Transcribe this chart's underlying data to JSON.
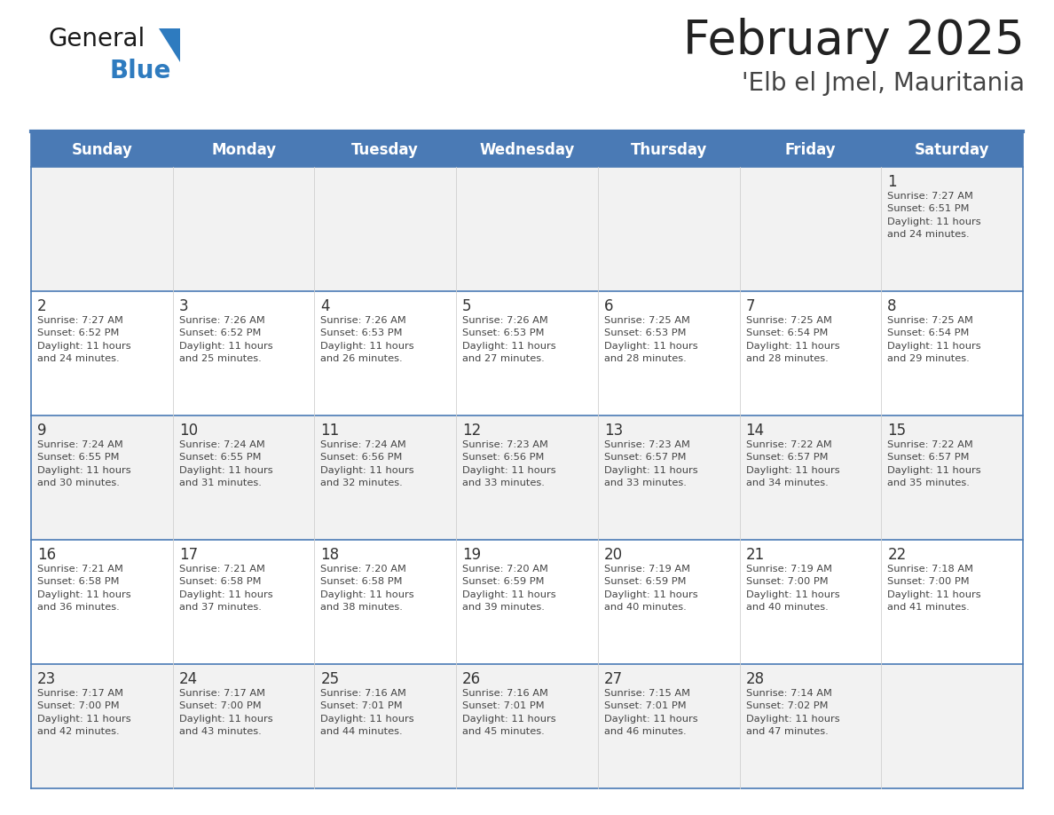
{
  "title": "February 2025",
  "subtitle": "'Elb el Jmel, Mauritania",
  "days_of_week": [
    "Sunday",
    "Monday",
    "Tuesday",
    "Wednesday",
    "Thursday",
    "Friday",
    "Saturday"
  ],
  "header_bg": "#4a7ab5",
  "header_text": "#ffffff",
  "row_bg_even": "#f2f2f2",
  "row_bg_odd": "#ffffff",
  "separator_color": "#4a7ab5",
  "day_num_color": "#333333",
  "info_color": "#444444",
  "title_color": "#222222",
  "subtitle_color": "#444444",
  "logo_black": "#1a1a1a",
  "logo_blue": "#2e7bbf",
  "calendar_data": [
    [
      null,
      null,
      null,
      null,
      null,
      null,
      1
    ],
    [
      2,
      3,
      4,
      5,
      6,
      7,
      8
    ],
    [
      9,
      10,
      11,
      12,
      13,
      14,
      15
    ],
    [
      16,
      17,
      18,
      19,
      20,
      21,
      22
    ],
    [
      23,
      24,
      25,
      26,
      27,
      28,
      null
    ]
  ],
  "sunrise_data": {
    "1": "Sunrise: 7:27 AM\nSunset: 6:51 PM\nDaylight: 11 hours\nand 24 minutes.",
    "2": "Sunrise: 7:27 AM\nSunset: 6:52 PM\nDaylight: 11 hours\nand 24 minutes.",
    "3": "Sunrise: 7:26 AM\nSunset: 6:52 PM\nDaylight: 11 hours\nand 25 minutes.",
    "4": "Sunrise: 7:26 AM\nSunset: 6:53 PM\nDaylight: 11 hours\nand 26 minutes.",
    "5": "Sunrise: 7:26 AM\nSunset: 6:53 PM\nDaylight: 11 hours\nand 27 minutes.",
    "6": "Sunrise: 7:25 AM\nSunset: 6:53 PM\nDaylight: 11 hours\nand 28 minutes.",
    "7": "Sunrise: 7:25 AM\nSunset: 6:54 PM\nDaylight: 11 hours\nand 28 minutes.",
    "8": "Sunrise: 7:25 AM\nSunset: 6:54 PM\nDaylight: 11 hours\nand 29 minutes.",
    "9": "Sunrise: 7:24 AM\nSunset: 6:55 PM\nDaylight: 11 hours\nand 30 minutes.",
    "10": "Sunrise: 7:24 AM\nSunset: 6:55 PM\nDaylight: 11 hours\nand 31 minutes.",
    "11": "Sunrise: 7:24 AM\nSunset: 6:56 PM\nDaylight: 11 hours\nand 32 minutes.",
    "12": "Sunrise: 7:23 AM\nSunset: 6:56 PM\nDaylight: 11 hours\nand 33 minutes.",
    "13": "Sunrise: 7:23 AM\nSunset: 6:57 PM\nDaylight: 11 hours\nand 33 minutes.",
    "14": "Sunrise: 7:22 AM\nSunset: 6:57 PM\nDaylight: 11 hours\nand 34 minutes.",
    "15": "Sunrise: 7:22 AM\nSunset: 6:57 PM\nDaylight: 11 hours\nand 35 minutes.",
    "16": "Sunrise: 7:21 AM\nSunset: 6:58 PM\nDaylight: 11 hours\nand 36 minutes.",
    "17": "Sunrise: 7:21 AM\nSunset: 6:58 PM\nDaylight: 11 hours\nand 37 minutes.",
    "18": "Sunrise: 7:20 AM\nSunset: 6:58 PM\nDaylight: 11 hours\nand 38 minutes.",
    "19": "Sunrise: 7:20 AM\nSunset: 6:59 PM\nDaylight: 11 hours\nand 39 minutes.",
    "20": "Sunrise: 7:19 AM\nSunset: 6:59 PM\nDaylight: 11 hours\nand 40 minutes.",
    "21": "Sunrise: 7:19 AM\nSunset: 7:00 PM\nDaylight: 11 hours\nand 40 minutes.",
    "22": "Sunrise: 7:18 AM\nSunset: 7:00 PM\nDaylight: 11 hours\nand 41 minutes.",
    "23": "Sunrise: 7:17 AM\nSunset: 7:00 PM\nDaylight: 11 hours\nand 42 minutes.",
    "24": "Sunrise: 7:17 AM\nSunset: 7:00 PM\nDaylight: 11 hours\nand 43 minutes.",
    "25": "Sunrise: 7:16 AM\nSunset: 7:01 PM\nDaylight: 11 hours\nand 44 minutes.",
    "26": "Sunrise: 7:16 AM\nSunset: 7:01 PM\nDaylight: 11 hours\nand 45 minutes.",
    "27": "Sunrise: 7:15 AM\nSunset: 7:01 PM\nDaylight: 11 hours\nand 46 minutes.",
    "28": "Sunrise: 7:14 AM\nSunset: 7:02 PM\nDaylight: 11 hours\nand 47 minutes."
  }
}
